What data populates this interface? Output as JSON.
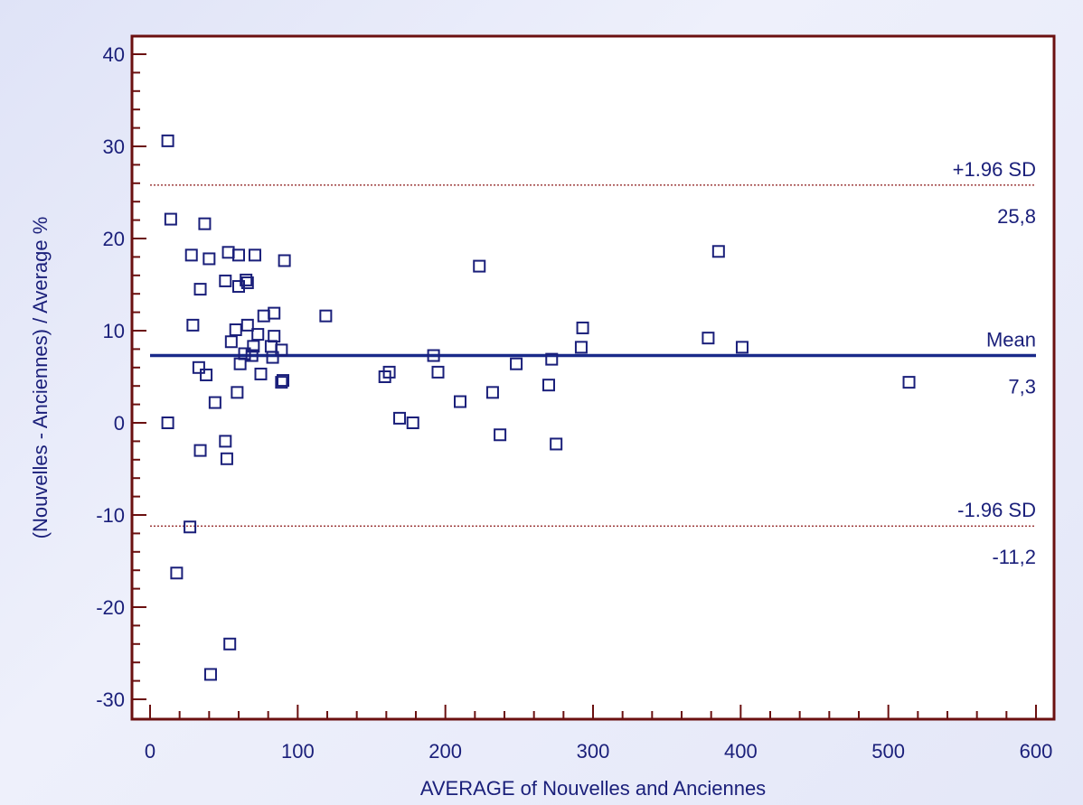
{
  "chart_data": {
    "type": "scatter",
    "xlabel": "AVERAGE of Nouvelles and Anciennes",
    "ylabel": "(Nouvelles - Anciennes) / Average %",
    "xlim": [
      0,
      600
    ],
    "ylim": [
      -32,
      42
    ],
    "x_ticks": [
      0,
      100,
      200,
      300,
      400,
      500,
      600
    ],
    "y_ticks": [
      -30,
      -20,
      -10,
      0,
      10,
      20,
      30,
      40
    ],
    "grid": false,
    "reference_lines": [
      {
        "name": "upper",
        "label": "+1.96 SD",
        "value_label": "25,8",
        "value": 25.8,
        "style": "dotted",
        "color": "#8b1a1a"
      },
      {
        "name": "mean",
        "label": "Mean",
        "value_label": "7,3",
        "value": 7.3,
        "style": "solid",
        "color": "#1a2a8a"
      },
      {
        "name": "lower",
        "label": "-1.96 SD",
        "value_label": "-11,2",
        "value": -11.2,
        "style": "dotted",
        "color": "#8b1a1a"
      }
    ],
    "marker_color": "#1a1f7a",
    "frame_color": "#6b1010",
    "points": [
      [
        12,
        30.6
      ],
      [
        14,
        22.1
      ],
      [
        12,
        0.0
      ],
      [
        18,
        -16.3
      ],
      [
        27,
        -11.3
      ],
      [
        28,
        18.2
      ],
      [
        29,
        10.6
      ],
      [
        33,
        6.0
      ],
      [
        34,
        14.5
      ],
      [
        34,
        -3.0
      ],
      [
        37,
        21.6
      ],
      [
        38,
        5.2
      ],
      [
        40,
        17.8
      ],
      [
        41,
        -27.3
      ],
      [
        44,
        2.2
      ],
      [
        51,
        15.4
      ],
      [
        51,
        -2.0
      ],
      [
        52,
        -3.9
      ],
      [
        53,
        18.5
      ],
      [
        54,
        -24.0
      ],
      [
        55,
        8.8
      ],
      [
        58,
        10.1
      ],
      [
        59,
        3.3
      ],
      [
        60,
        18.2
      ],
      [
        60,
        14.8
      ],
      [
        61,
        6.4
      ],
      [
        64,
        7.5
      ],
      [
        65,
        15.5
      ],
      [
        66,
        15.2
      ],
      [
        66,
        10.6
      ],
      [
        69,
        7.3
      ],
      [
        70,
        8.3
      ],
      [
        71,
        18.2
      ],
      [
        73,
        9.6
      ],
      [
        75,
        5.3
      ],
      [
        77,
        11.6
      ],
      [
        82,
        8.3
      ],
      [
        83,
        7.1
      ],
      [
        84,
        11.9
      ],
      [
        84,
        9.4
      ],
      [
        89,
        7.9
      ],
      [
        89,
        4.4
      ],
      [
        90,
        4.6
      ],
      [
        91,
        17.6
      ],
      [
        119,
        11.6
      ],
      [
        159,
        5.0
      ],
      [
        162,
        5.5
      ],
      [
        169,
        0.5
      ],
      [
        178,
        0.0
      ],
      [
        192,
        7.3
      ],
      [
        195,
        5.5
      ],
      [
        210,
        2.3
      ],
      [
        223,
        17.0
      ],
      [
        232,
        3.3
      ],
      [
        237,
        -1.3
      ],
      [
        248,
        6.4
      ],
      [
        270,
        4.1
      ],
      [
        272,
        6.9
      ],
      [
        275,
        -2.3
      ],
      [
        292,
        8.2
      ],
      [
        293,
        10.3
      ],
      [
        378,
        9.2
      ],
      [
        385,
        18.6
      ],
      [
        401,
        8.2
      ],
      [
        514,
        4.4
      ]
    ]
  }
}
